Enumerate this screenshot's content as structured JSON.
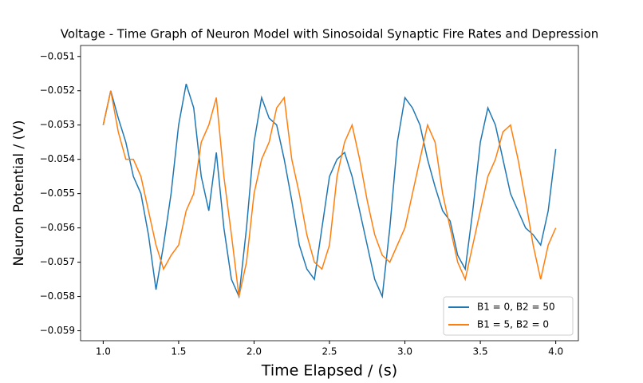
{
  "chart_data": {
    "type": "line",
    "title": "Voltage - Time Graph of Neuron Model with Sinosoidal Synaptic Fire Rates and Depression",
    "xlabel": "Time Elapsed / (s)",
    "ylabel": "Neuron Potential / (V)",
    "x": [
      1.0,
      1.05,
      1.1,
      1.15,
      1.2,
      1.25,
      1.3,
      1.35,
      1.4,
      1.45,
      1.5,
      1.55,
      1.6,
      1.65,
      1.7,
      1.75,
      1.8,
      1.85,
      1.9,
      1.95,
      2.0,
      2.05,
      2.1,
      2.15,
      2.2,
      2.25,
      2.3,
      2.35,
      2.4,
      2.45,
      2.5,
      2.55,
      2.6,
      2.65,
      2.7,
      2.75,
      2.8,
      2.85,
      2.9,
      2.95,
      3.0,
      3.05,
      3.1,
      3.15,
      3.2,
      3.25,
      3.3,
      3.35,
      3.4,
      3.45,
      3.5,
      3.55,
      3.6,
      3.65,
      3.7,
      3.75,
      3.8,
      3.85,
      3.9,
      3.95,
      4.0
    ],
    "series": [
      {
        "name": "B1 = 0, B2 = 50",
        "color": "#1f77b4",
        "values": [
          -0.053,
          -0.052,
          -0.0528,
          -0.0535,
          -0.0545,
          -0.055,
          -0.0562,
          -0.0578,
          -0.0565,
          -0.055,
          -0.053,
          -0.0518,
          -0.0525,
          -0.0545,
          -0.0555,
          -0.0538,
          -0.056,
          -0.0575,
          -0.058,
          -0.056,
          -0.0535,
          -0.0522,
          -0.0528,
          -0.053,
          -0.054,
          -0.0552,
          -0.0565,
          -0.0572,
          -0.0575,
          -0.056,
          -0.0545,
          -0.054,
          -0.0538,
          -0.0545,
          -0.0555,
          -0.0565,
          -0.0575,
          -0.058,
          -0.056,
          -0.0535,
          -0.0522,
          -0.0525,
          -0.053,
          -0.054,
          -0.0548,
          -0.0555,
          -0.0558,
          -0.0568,
          -0.0572,
          -0.0555,
          -0.0535,
          -0.0525,
          -0.053,
          -0.054,
          -0.055,
          -0.0555,
          -0.056,
          -0.0562,
          -0.0565,
          -0.0555,
          -0.0537
        ]
      },
      {
        "name": "B1 = 5, B2 = 0",
        "color": "#ff7f0e",
        "values": [
          -0.053,
          -0.052,
          -0.0532,
          -0.054,
          -0.054,
          -0.0545,
          -0.0555,
          -0.0565,
          -0.0572,
          -0.0568,
          -0.0565,
          -0.0555,
          -0.055,
          -0.0535,
          -0.053,
          -0.0522,
          -0.0545,
          -0.0562,
          -0.058,
          -0.057,
          -0.055,
          -0.054,
          -0.0535,
          -0.0525,
          -0.0522,
          -0.054,
          -0.055,
          -0.0562,
          -0.057,
          -0.0572,
          -0.0565,
          -0.0545,
          -0.0535,
          -0.053,
          -0.054,
          -0.0552,
          -0.0562,
          -0.0568,
          -0.057,
          -0.0565,
          -0.056,
          -0.055,
          -0.054,
          -0.053,
          -0.0535,
          -0.055,
          -0.056,
          -0.057,
          -0.0575,
          -0.0565,
          -0.0555,
          -0.0545,
          -0.054,
          -0.0532,
          -0.053,
          -0.054,
          -0.0552,
          -0.0565,
          -0.0575,
          -0.0565,
          -0.056
        ]
      }
    ],
    "xlim": [
      0.85,
      4.15
    ],
    "ylim": [
      -0.05929,
      -0.05068
    ],
    "xticks": [
      {
        "value": 1.0,
        "label": "1.0"
      },
      1.5,
      {
        "value": 2.0,
        "label": "2.0"
      },
      2.5,
      {
        "value": 3.0,
        "label": "3.0"
      },
      3.5,
      {
        "value": 4.0,
        "label": "4.0"
      }
    ],
    "yticks": [
      {
        "value": -0.059,
        "label": "−0.059"
      },
      {
        "value": -0.058,
        "label": "−0.058"
      },
      {
        "value": -0.057,
        "label": "−0.057"
      },
      {
        "value": -0.056,
        "label": "−0.056"
      },
      {
        "value": -0.055,
        "label": "−0.055"
      },
      {
        "value": -0.054,
        "label": "−0.054"
      },
      {
        "value": -0.053,
        "label": "−0.053"
      },
      {
        "value": -0.052,
        "label": "−0.052"
      },
      {
        "value": -0.051,
        "label": "−0.051"
      }
    ],
    "legend": "lower right"
  }
}
